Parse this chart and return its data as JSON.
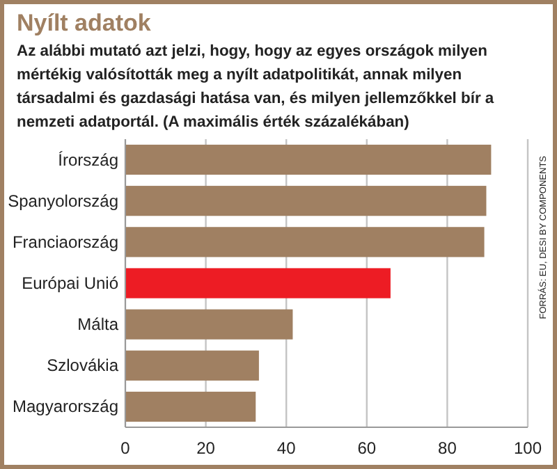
{
  "chart_data": {
    "type": "bar",
    "orientation": "horizontal",
    "title": "Nyílt adatok",
    "subtitle": "Az alábbi mutató azt jelzi, hogy, hogy az egyes országok milyen mértékig valósították meg a nyílt adatpolitikát, annak milyen társadalmi és gazdasági hatása van, és milyen jellemzőkkel bír a nemzeti adatportál. (A maximális érték százalékában)",
    "categories": [
      "Írország",
      "Spanyolország",
      "Franciaország",
      "Európai Unió",
      "Málta",
      "Szlovákia",
      "Magyarország"
    ],
    "values": [
      90.9,
      89.7,
      89.2,
      65.9,
      41.6,
      33.2,
      32.4
    ],
    "colors": [
      "#a08062",
      "#a08062",
      "#a08062",
      "#ed1c24",
      "#a08062",
      "#a08062",
      "#a08062"
    ],
    "xlim": [
      0,
      100
    ],
    "xticks": [
      0,
      20,
      40,
      60,
      80,
      100
    ],
    "grid": "x",
    "annotations": [
      "FORRÁS: EU, DESI BY COMPONENTS"
    ]
  }
}
